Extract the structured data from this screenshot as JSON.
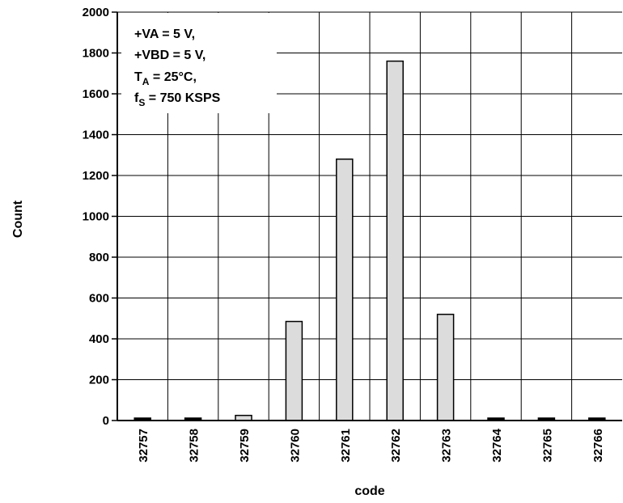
{
  "chart_data": {
    "type": "bar",
    "categories": [
      "32757",
      "32758",
      "32759",
      "32760",
      "32761",
      "32762",
      "32763",
      "32764",
      "32765",
      "32766"
    ],
    "values": [
      0,
      5,
      25,
      485,
      1280,
      1760,
      520,
      20,
      5,
      0
    ],
    "xlabel": "code",
    "ylabel": "Count",
    "ylim": [
      0,
      2000
    ],
    "yticks": [
      "0",
      "200",
      "400",
      "600",
      "800",
      "1000",
      "1200",
      "1400",
      "1600",
      "1800",
      "2000"
    ],
    "grid": true,
    "bar_color": "#dcdcdc",
    "annotation": {
      "line1": "+VA = 5 V,",
      "line2": "+VBD = 5 V,",
      "line3_main": "T",
      "line3_sub": "A",
      "line3_rest": " = 25°C,",
      "line4_main": "f",
      "line4_sub": "S",
      "line4_rest": " = 750 KSPS"
    }
  }
}
